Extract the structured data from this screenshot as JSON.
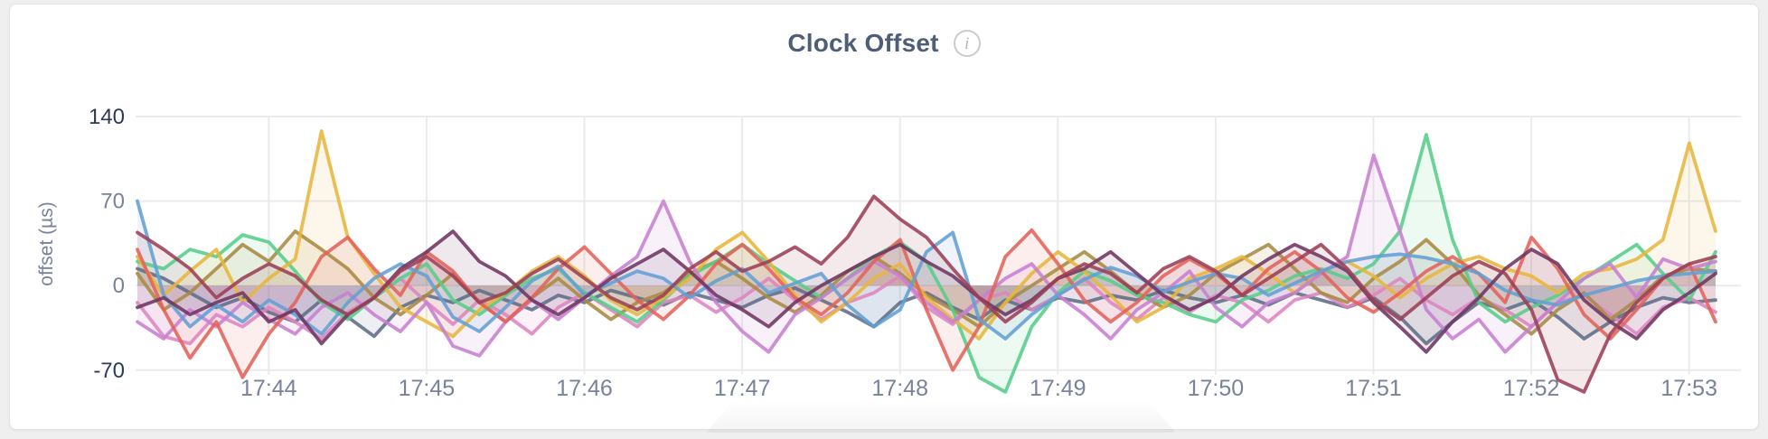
{
  "page": {
    "background_color": "#efefef",
    "card_color": "#ffffff"
  },
  "header": {
    "title": "Clock Offset",
    "title_color": "#4e5d78",
    "info_icon": "i"
  },
  "chart_data": {
    "type": "line",
    "title": "Clock Offset",
    "xlabel": "",
    "ylabel": "offset (µs)",
    "ylim": [
      -70,
      140
    ],
    "yticks": [
      140,
      70,
      0,
      -70
    ],
    "ytick_emphasized": [
      140,
      -70
    ],
    "x_tick_labels": [
      "17:44",
      "17:45",
      "17:46",
      "17:47",
      "17:48",
      "17:49",
      "17:50",
      "17:51",
      "17:52",
      "17:53"
    ],
    "x_step_seconds": 10,
    "points_start_ticks_before_first_label": 5,
    "points_per_series": 61,
    "grid": true,
    "legend_position": "none",
    "grid_color": "#ebebed",
    "axis_text_color": "#78829a",
    "axis_text_color_strong": "#2c3958",
    "series": [
      {
        "name": "slate",
        "color": "#5f6d87",
        "values": [
          14,
          6,
          -6,
          -18,
          -10,
          -22,
          -30,
          -12,
          -26,
          -42,
          -18,
          -8,
          -14,
          -4,
          -12,
          -20,
          -8,
          -14,
          -4,
          -10,
          -16,
          -6,
          -12,
          -18,
          -8,
          -2,
          -12,
          -22,
          -34,
          -14,
          -6,
          -18,
          -28,
          -12,
          -20,
          -10,
          -14,
          -8,
          -12,
          -4,
          -10,
          -14,
          -8,
          -16,
          -6,
          -12,
          -18,
          -10,
          -26,
          -48,
          -30,
          -14,
          -20,
          -12,
          -26,
          -44,
          -30,
          -18,
          -10,
          -14,
          -12
        ]
      },
      {
        "name": "pink",
        "color": "#dd85c0",
        "values": [
          -14,
          -42,
          -48,
          -24,
          -34,
          -18,
          -30,
          -44,
          -22,
          -10,
          6,
          -14,
          -32,
          -12,
          -24,
          -40,
          -18,
          -6,
          -20,
          -34,
          -14,
          -8,
          -22,
          -10,
          6,
          -12,
          -28,
          -14,
          -6,
          8,
          -18,
          -32,
          -12,
          -6,
          -20,
          -8,
          6,
          -14,
          -28,
          -10,
          -22,
          -8,
          -14,
          -30,
          -12,
          -6,
          -18,
          -8,
          6,
          -12,
          -24,
          -10,
          -20,
          -34,
          -14,
          -8,
          -24,
          -40,
          -18,
          -10,
          -22
        ]
      },
      {
        "name": "olive",
        "color": "#a98a43",
        "values": [
          10,
          -20,
          -6,
          14,
          34,
          20,
          45,
          30,
          14,
          -10,
          -24,
          -8,
          10,
          -14,
          -30,
          -10,
          6,
          -12,
          -28,
          -14,
          -6,
          10,
          20,
          6,
          -10,
          -22,
          -8,
          12,
          24,
          10,
          -8,
          -20,
          -34,
          -14,
          0,
          14,
          28,
          12,
          -6,
          -18,
          -8,
          10,
          22,
          34,
          14,
          -6,
          -14,
          6,
          20,
          38,
          18,
          -8,
          -24,
          -40,
          -20,
          -6,
          -28,
          -12,
          8,
          14,
          12
        ]
      },
      {
        "name": "green",
        "color": "#57cd8a",
        "values": [
          20,
          14,
          30,
          24,
          42,
          36,
          12,
          -14,
          -28,
          -10,
          6,
          18,
          -12,
          -24,
          -8,
          6,
          14,
          -6,
          -18,
          -30,
          -12,
          8,
          20,
          34,
          18,
          4,
          -10,
          6,
          24,
          36,
          20,
          -20,
          -76,
          -88,
          -34,
          -6,
          12,
          4,
          -8,
          -14,
          -24,
          -30,
          -12,
          -4,
          8,
          14,
          6,
          18,
          45,
          125,
          38,
          -14,
          -30,
          -18,
          -8,
          6,
          20,
          34,
          10,
          -12,
          28
        ]
      },
      {
        "name": "gold",
        "color": "#e7b63c",
        "values": [
          24,
          -8,
          12,
          30,
          -14,
          6,
          22,
          128,
          40,
          10,
          -18,
          -30,
          -42,
          -20,
          -6,
          12,
          24,
          8,
          -12,
          -24,
          -10,
          6,
          30,
          44,
          20,
          -8,
          -30,
          -14,
          6,
          18,
          -10,
          -28,
          -44,
          -14,
          10,
          28,
          12,
          -8,
          -30,
          -18,
          6,
          14,
          24,
          10,
          -6,
          12,
          20,
          8,
          -10,
          6,
          18,
          24,
          14,
          8,
          -6,
          10,
          14,
          22,
          38,
          118,
          45
        ]
      },
      {
        "name": "orchid",
        "color": "#c77fd0",
        "values": [
          -30,
          -44,
          -20,
          -34,
          -14,
          -28,
          -40,
          -18,
          -6,
          -24,
          -38,
          -14,
          -50,
          -58,
          -30,
          -12,
          -28,
          -10,
          8,
          24,
          70,
          20,
          -14,
          -38,
          -55,
          -24,
          -10,
          6,
          20,
          8,
          -14,
          -30,
          -12,
          6,
          18,
          -8,
          -24,
          -44,
          -20,
          -6,
          12,
          -18,
          -34,
          -14,
          -6,
          10,
          24,
          108,
          45,
          -20,
          -44,
          -28,
          -55,
          -34,
          -14,
          6,
          18,
          -10,
          22,
          14,
          20
        ]
      },
      {
        "name": "salmon",
        "color": "#e2625a",
        "values": [
          30,
          -20,
          -60,
          -30,
          -76,
          -40,
          -14,
          24,
          40,
          14,
          -8,
          28,
          12,
          -14,
          -30,
          -10,
          14,
          32,
          10,
          -12,
          -28,
          -8,
          18,
          34,
          14,
          -10,
          -24,
          -6,
          20,
          38,
          -20,
          -70,
          -34,
          24,
          46,
          18,
          -12,
          -30,
          -14,
          8,
          22,
          10,
          -8,
          14,
          28,
          12,
          -10,
          -22,
          -6,
          12,
          24,
          10,
          -14,
          40,
          14,
          -24,
          -44,
          -20,
          6,
          18,
          -30
        ]
      },
      {
        "name": "blue",
        "color": "#639fd4",
        "values": [
          70,
          -8,
          -34,
          -16,
          -30,
          -12,
          -24,
          -40,
          -14,
          6,
          18,
          8,
          -26,
          -38,
          -18,
          4,
          16,
          -8,
          2,
          12,
          6,
          -10,
          4,
          14,
          -6,
          2,
          10,
          -16,
          -34,
          -20,
          28,
          44,
          -28,
          -44,
          -24,
          -8,
          5,
          15,
          8,
          -5,
          3,
          10,
          6,
          -8,
          2,
          12,
          20,
          24,
          26,
          23,
          18,
          10,
          -4,
          -12,
          -16,
          -8,
          -2,
          4,
          8,
          10,
          12
        ]
      },
      {
        "name": "plum",
        "color": "#6e3661",
        "values": [
          -18,
          -10,
          -24,
          -14,
          -6,
          -30,
          -20,
          -48,
          -24,
          -10,
          14,
          28,
          45,
          20,
          8,
          -12,
          -24,
          -10,
          6,
          18,
          30,
          12,
          -8,
          -20,
          -34,
          -14,
          0,
          12,
          24,
          34,
          20,
          8,
          -10,
          -24,
          -12,
          6,
          14,
          28,
          10,
          -8,
          -20,
          -10,
          8,
          22,
          34,
          24,
          12,
          -14,
          -34,
          -55,
          -30,
          -10,
          14,
          30,
          18,
          -12,
          -30,
          -44,
          -20,
          -6,
          10
        ]
      },
      {
        "name": "maroon",
        "color": "#9c3f56",
        "values": [
          44,
          30,
          14,
          -10,
          6,
          18,
          8,
          -12,
          -24,
          -10,
          12,
          24,
          8,
          -14,
          -6,
          10,
          22,
          6,
          -10,
          -20,
          -8,
          14,
          28,
          12,
          20,
          32,
          18,
          40,
          74,
          55,
          40,
          14,
          -10,
          -30,
          -14,
          6,
          18,
          10,
          -6,
          14,
          24,
          12,
          -8,
          6,
          20,
          34,
          14,
          -12,
          -28,
          -10,
          8,
          20,
          10,
          -20,
          -78,
          -88,
          -40,
          -14,
          6,
          18,
          24
        ]
      }
    ]
  }
}
